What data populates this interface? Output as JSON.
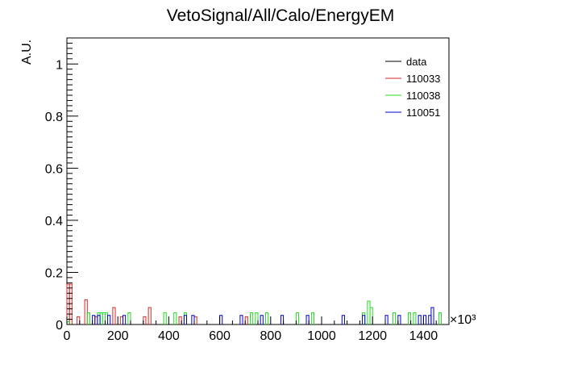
{
  "chart_data": {
    "type": "histogram",
    "title": "VetoSignal/All/Calo/EnergyEM",
    "xlabel": "",
    "ylabel": "A.U.",
    "xlim": [
      0,
      1500
    ],
    "ylim": [
      0,
      1.1
    ],
    "bin_width": 10,
    "x_multiplier_label": "×10³",
    "x_tick_labels": [
      "0",
      "200",
      "400",
      "600",
      "800",
      "1000",
      "1200",
      "1400"
    ],
    "x_ticks": [
      0,
      200,
      400,
      600,
      800,
      1000,
      1200,
      1400
    ],
    "y_tick_labels": [
      "0",
      "0.2",
      "0.4",
      "0.6",
      "0.8",
      "1"
    ],
    "y_ticks": [
      0,
      0.2,
      0.4,
      0.6,
      0.8,
      1.0
    ],
    "legend_position": "top-right",
    "grid": false,
    "series": [
      {
        "name": "data",
        "color": "#000000",
        "bins": []
      },
      {
        "name": "110033",
        "color": "#d62728",
        "bins": [
          [
            0,
            0.155
          ],
          [
            10,
            0.155
          ],
          [
            40,
            0.03
          ],
          [
            70,
            0.095
          ],
          [
            110,
            0.03
          ],
          [
            180,
            0.065
          ],
          [
            210,
            0.03
          ],
          [
            300,
            0.03
          ],
          [
            320,
            0.065
          ],
          [
            440,
            0.03
          ],
          [
            500,
            0.03
          ],
          [
            700,
            0.03
          ]
        ]
      },
      {
        "name": "110038",
        "color": "#22dd22",
        "bins": [
          [
            0,
            0.01
          ],
          [
            80,
            0.045
          ],
          [
            120,
            0.045
          ],
          [
            130,
            0.045
          ],
          [
            140,
            0.045
          ],
          [
            150,
            0.045
          ],
          [
            240,
            0.045
          ],
          [
            380,
            0.045
          ],
          [
            420,
            0.045
          ],
          [
            460,
            0.045
          ],
          [
            720,
            0.045
          ],
          [
            740,
            0.045
          ],
          [
            780,
            0.045
          ],
          [
            900,
            0.045
          ],
          [
            960,
            0.045
          ],
          [
            1160,
            0.045
          ],
          [
            1180,
            0.09
          ],
          [
            1190,
            0.065
          ],
          [
            1280,
            0.045
          ],
          [
            1340,
            0.045
          ],
          [
            1360,
            0.045
          ],
          [
            1460,
            0.045
          ]
        ]
      },
      {
        "name": "110051",
        "color": "#0000cc",
        "bins": [
          [
            100,
            0.035
          ],
          [
            120,
            0.035
          ],
          [
            160,
            0.035
          ],
          [
            220,
            0.035
          ],
          [
            460,
            0.035
          ],
          [
            490,
            0.035
          ],
          [
            600,
            0.035
          ],
          [
            680,
            0.035
          ],
          [
            760,
            0.035
          ],
          [
            840,
            0.035
          ],
          [
            940,
            0.035
          ],
          [
            1080,
            0.035
          ],
          [
            1160,
            0.035
          ],
          [
            1250,
            0.035
          ],
          [
            1300,
            0.035
          ],
          [
            1380,
            0.035
          ],
          [
            1400,
            0.035
          ],
          [
            1420,
            0.035
          ],
          [
            1430,
            0.065
          ]
        ]
      }
    ]
  }
}
